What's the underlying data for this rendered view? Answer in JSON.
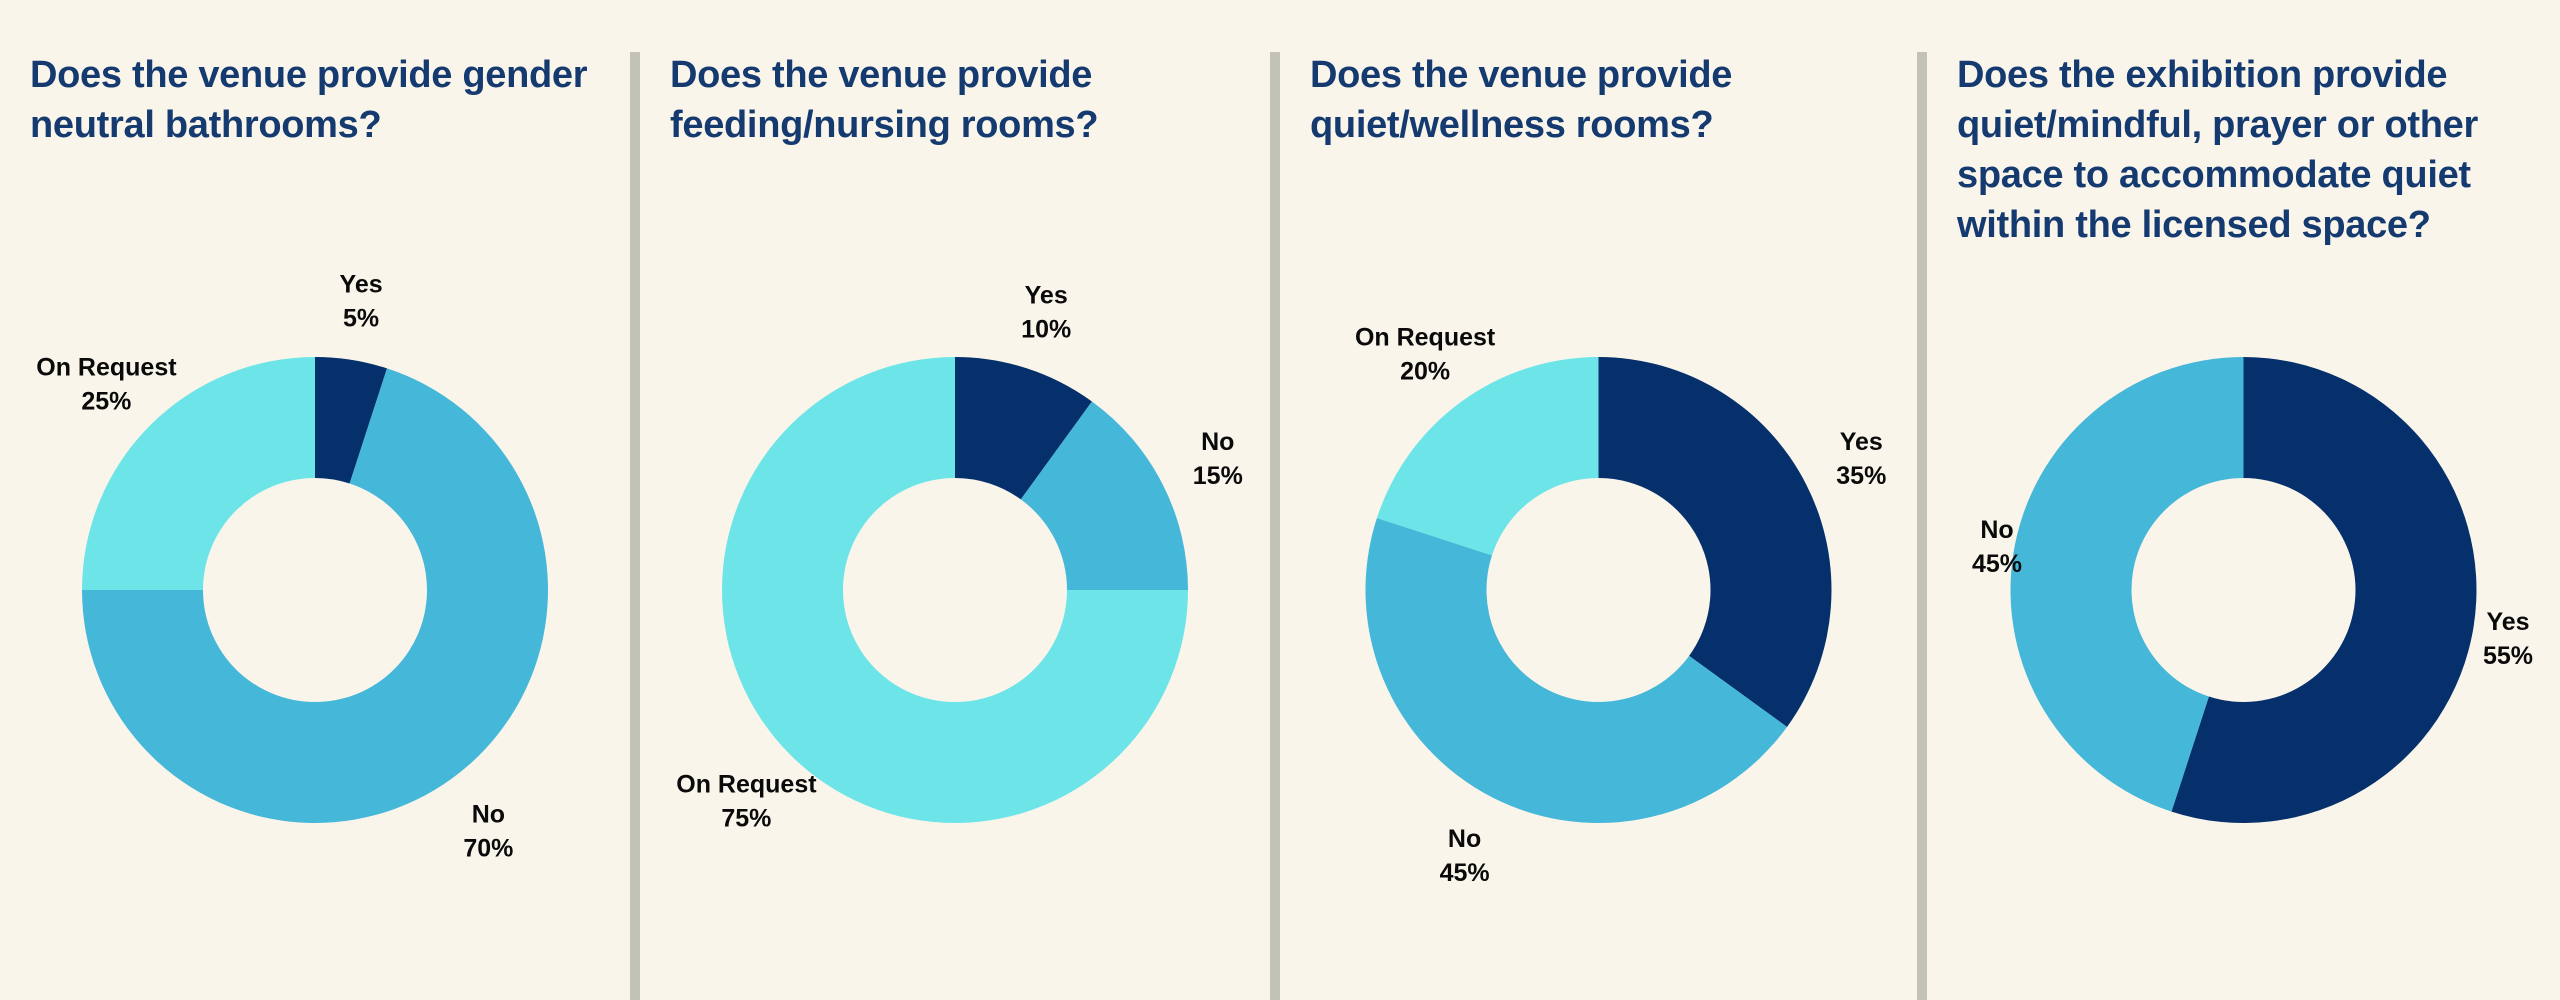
{
  "page": {
    "background": "#FAF5EB",
    "divider_color": "#C2C2B5",
    "title_color": "#143A70",
    "label_color": "#0A0A0A"
  },
  "colors": {
    "navy": "#06306B",
    "blue": "#45B7D8",
    "cyan": "#6DE4E7"
  },
  "chart_data": [
    {
      "type": "pie",
      "subtype": "donut",
      "title": "Does the venue provide gender neutral bathrooms?",
      "categories": [
        "Yes",
        "No",
        "On Request"
      ],
      "values": [
        5,
        70,
        25
      ],
      "pct_labels": [
        "5%",
        "70%",
        "25%"
      ],
      "slice_colors": [
        "#06306B",
        "#45B7D8",
        "#6DE4E7"
      ],
      "start_angle_deg": 0,
      "direction": "clockwise",
      "hole_ratio": 0.48,
      "legend": false,
      "labels_outside": true
    },
    {
      "type": "pie",
      "subtype": "donut",
      "title": "Does the venue provide feeding/nursing rooms?",
      "categories": [
        "Yes",
        "No",
        "On Request"
      ],
      "values": [
        10,
        15,
        75
      ],
      "pct_labels": [
        "10%",
        "15%",
        "75%"
      ],
      "slice_colors": [
        "#06306B",
        "#45B7D8",
        "#6DE4E7"
      ],
      "start_angle_deg": 0,
      "direction": "clockwise",
      "hole_ratio": 0.48,
      "legend": false,
      "labels_outside": true
    },
    {
      "type": "pie",
      "subtype": "donut",
      "title": "Does the venue provide quiet/wellness rooms?",
      "categories": [
        "Yes",
        "No",
        "On Request"
      ],
      "values": [
        35,
        45,
        20
      ],
      "pct_labels": [
        "35%",
        "45%",
        "20%"
      ],
      "slice_colors": [
        "#06306B",
        "#45B7D8",
        "#6DE4E7"
      ],
      "start_angle_deg": 0,
      "direction": "clockwise",
      "hole_ratio": 0.48,
      "legend": false,
      "labels_outside": true
    },
    {
      "type": "pie",
      "subtype": "donut",
      "title": "Does the exhibition provide quiet/mindful, prayer or other space to accommodate quiet within the licensed space?",
      "categories": [
        "Yes",
        "No"
      ],
      "values": [
        55,
        45
      ],
      "pct_labels": [
        "55%",
        "45%"
      ],
      "slice_colors": [
        "#06306B",
        "#45B7D8"
      ],
      "start_angle_deg": 0,
      "direction": "clockwise",
      "hole_ratio": 0.48,
      "legend": false,
      "labels_outside": true
    }
  ]
}
